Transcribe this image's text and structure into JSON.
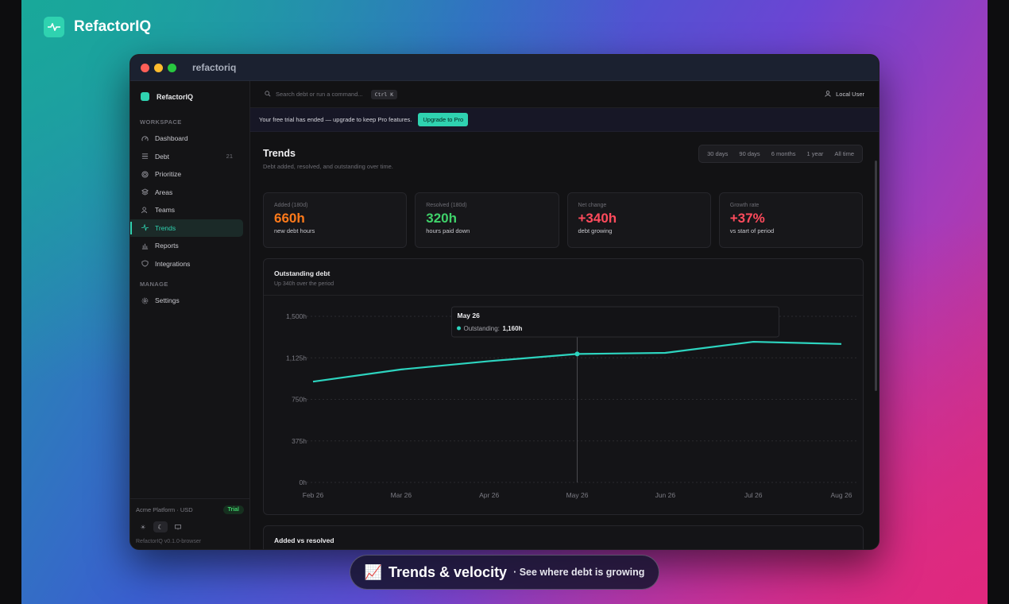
{
  "brand": {
    "name": "RefactorIQ"
  },
  "window": {
    "title": "refactoriq"
  },
  "sidebar": {
    "brand": "RefactorIQ",
    "workspace_label": "WORKSPACE",
    "manage_label": "MANAGE",
    "items": [
      {
        "label": "Dashboard",
        "icon": "gauge-icon"
      },
      {
        "label": "Debt",
        "icon": "list-icon",
        "count": "21"
      },
      {
        "label": "Prioritize",
        "icon": "target-icon"
      },
      {
        "label": "Areas",
        "icon": "layers-icon"
      },
      {
        "label": "Teams",
        "icon": "users-icon"
      },
      {
        "label": "Trends",
        "icon": "activity-icon",
        "active": true
      },
      {
        "label": "Reports",
        "icon": "bar-chart-icon"
      },
      {
        "label": "Integrations",
        "icon": "shield-icon"
      }
    ],
    "manage_items": [
      {
        "label": "Settings",
        "icon": "gear-icon"
      }
    ],
    "org": "Acme Platform · USD",
    "trial_badge": "Trial",
    "version": "RefactorIQ v0.1.0-browser"
  },
  "topbar": {
    "search_placeholder": "Search debt or run a command...",
    "shortcut": "Ctrl K",
    "user": "Local User"
  },
  "banner": {
    "text": "Your free trial has ended — upgrade to keep Pro features.",
    "button": "Upgrade to Pro"
  },
  "page": {
    "title": "Trends",
    "subtitle": "Debt added, resolved, and outstanding over time.",
    "ranges": [
      "30 days",
      "90 days",
      "6 months",
      "1 year",
      "All time"
    ]
  },
  "stats": [
    {
      "label": "Added (180d)",
      "value": "660h",
      "desc": "new debt hours",
      "color": "#ff7a1a"
    },
    {
      "label": "Resolved (180d)",
      "value": "320h",
      "desc": "hours paid down",
      "color": "#3fd26a"
    },
    {
      "label": "Net change",
      "value": "+340h",
      "desc": "debt growing",
      "color": "#ff4b5c"
    },
    {
      "label": "Growth rate",
      "value": "+37%",
      "desc": "vs start of period",
      "color": "#ff4b5c"
    }
  ],
  "chart_data": {
    "type": "line",
    "title": "Outstanding debt",
    "subtitle": "Up 340h over the period",
    "x": [
      "Feb 26",
      "Mar 26",
      "Apr 26",
      "May 26",
      "Jun 26",
      "Jul 26",
      "Aug 26"
    ],
    "series": [
      {
        "name": "Outstanding",
        "values": [
          910,
          1020,
          1095,
          1160,
          1170,
          1270,
          1250
        ],
        "color": "#2dd4bf"
      }
    ],
    "yticks": [
      "0h",
      "375h",
      "750h",
      "1,125h",
      "1,500h"
    ],
    "ylim": [
      0,
      1500
    ],
    "grid": true,
    "tooltip": {
      "title": "May 26",
      "label": "Outstanding:",
      "value": "1,160h",
      "index": 3
    }
  },
  "section2": {
    "title": "Added vs resolved"
  },
  "caption": {
    "emoji": "📈",
    "title": "Trends & velocity",
    "subtitle": "· See where debt is growing"
  }
}
